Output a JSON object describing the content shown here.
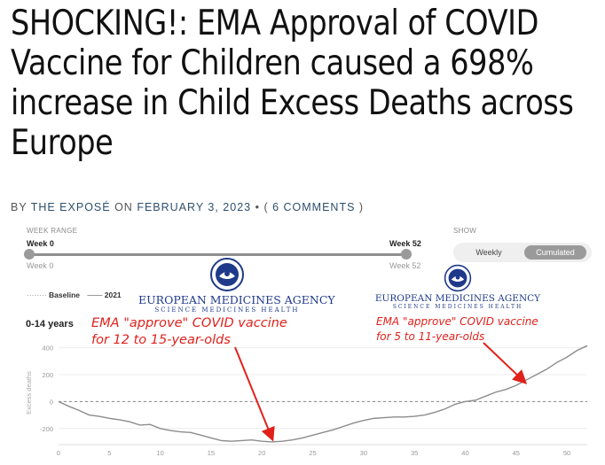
{
  "article": {
    "headline": "SHOCKING!: EMA Approval of COVID Vaccine for Children caused a 698% increase in Child Excess Deaths across Europe",
    "byline_by": "BY",
    "author": "THE EXPOSÉ",
    "byline_on": "ON",
    "date": "FEBRUARY 3, 2023",
    "comments_prefix": "• (",
    "comments": "6 COMMENTS",
    "comments_suffix": ")"
  },
  "controls": {
    "week_range_label": "WEEK RANGE",
    "start_week": "Week 0",
    "end_week": "Week 52",
    "start_min": "Week 0",
    "end_max": "Week 52",
    "show_label": "SHOW",
    "toggle_weekly": "Weekly",
    "toggle_cumulated": "Cumulated",
    "selected": "Cumulated"
  },
  "legend": {
    "baseline": "Baseline",
    "series": "2021"
  },
  "age_group": "0-14 years",
  "ema_logos": [
    {
      "name": "EUROPEAN MEDICINES AGENCY",
      "tagline": "SCIENCE  MEDICINES  HEALTH",
      "annotation_line1": "EMA \"approve\" COVID vaccine",
      "annotation_line2": "for 12 to 15-year-olds"
    },
    {
      "name": "EUROPEAN MEDICINES AGENCY",
      "tagline": "SCIENCE  MEDICINES  HEALTH",
      "annotation_line1": "EMA \"approve\" COVID vaccine",
      "annotation_line2": "for 5 to 11-year-olds"
    }
  ],
  "colors": {
    "ema_blue": "#1f3a8a",
    "annotation_red": "#e0211b",
    "line": "#8c8c8c"
  },
  "chart_data": {
    "type": "line",
    "ylabel": "Excess deaths",
    "xlim": [
      0,
      52
    ],
    "ylim": [
      -320,
      450
    ],
    "xticks": [
      0,
      5,
      10,
      15,
      20,
      25,
      30,
      35,
      40,
      45,
      50
    ],
    "yticks": [
      -200,
      0,
      200,
      400
    ],
    "baseline": 0,
    "series": [
      {
        "name": "2021",
        "x": [
          0,
          1,
          2,
          3,
          4,
          5,
          6,
          7,
          8,
          9,
          10,
          11,
          12,
          13,
          14,
          15,
          16,
          17,
          18,
          19,
          20,
          21,
          22,
          23,
          24,
          25,
          26,
          27,
          28,
          29,
          30,
          31,
          32,
          33,
          34,
          35,
          36,
          37,
          38,
          39,
          40,
          41,
          42,
          43,
          44,
          45,
          46,
          47,
          48,
          49,
          50,
          51,
          52
        ],
        "y": [
          0,
          -35,
          -65,
          -100,
          -110,
          -125,
          -135,
          -150,
          -175,
          -170,
          -200,
          -215,
          -225,
          -230,
          -250,
          -270,
          -290,
          -295,
          -290,
          -285,
          -295,
          -300,
          -295,
          -285,
          -270,
          -250,
          -230,
          -210,
          -185,
          -160,
          -140,
          -125,
          -120,
          -115,
          -115,
          -110,
          -100,
          -80,
          -55,
          -20,
          0,
          10,
          40,
          70,
          90,
          120,
          160,
          200,
          240,
          290,
          330,
          380,
          415
        ]
      }
    ],
    "arrows_to_week": [
      21,
      46
    ]
  }
}
